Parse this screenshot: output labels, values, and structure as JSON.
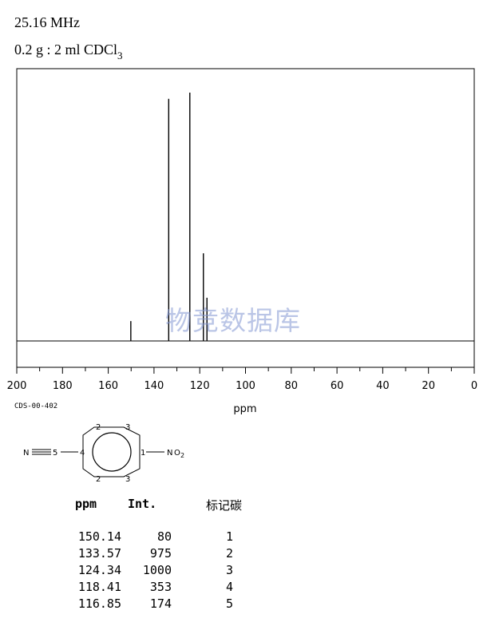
{
  "header": {
    "frequency": "25.16 MHz",
    "sample_main": "0.2 g : 2 ml CDCl",
    "sample_sub": "3"
  },
  "code": "CDS-00-402",
  "watermark": "物竞数据库",
  "chart_data": {
    "type": "line",
    "xlabel": "ppm",
    "xlim": [
      200,
      0
    ],
    "x_ticks": [
      200,
      180,
      160,
      140,
      120,
      100,
      80,
      60,
      40,
      20,
      0
    ],
    "ylim": [
      0,
      1000
    ],
    "grid": false,
    "peaks": [
      {
        "ppm": 150.14,
        "intensity": 80
      },
      {
        "ppm": 133.57,
        "intensity": 975
      },
      {
        "ppm": 124.34,
        "intensity": 1000
      },
      {
        "ppm": 118.41,
        "intensity": 353
      },
      {
        "ppm": 116.85,
        "intensity": 174
      }
    ]
  },
  "molecule": {
    "n_left": "N",
    "n_right": "N",
    "o": "O",
    "o_sub": "2",
    "labels": [
      "1",
      "2",
      "3",
      "4",
      "5",
      "2",
      "3"
    ]
  },
  "table": {
    "headers": [
      "ppm",
      "Int.",
      "标记碳"
    ],
    "rows": [
      [
        "150.14",
        "80",
        "1"
      ],
      [
        "133.57",
        "975",
        "2"
      ],
      [
        "124.34",
        "1000",
        "3"
      ],
      [
        "118.41",
        "353",
        "4"
      ],
      [
        "116.85",
        "174",
        "5"
      ]
    ]
  }
}
